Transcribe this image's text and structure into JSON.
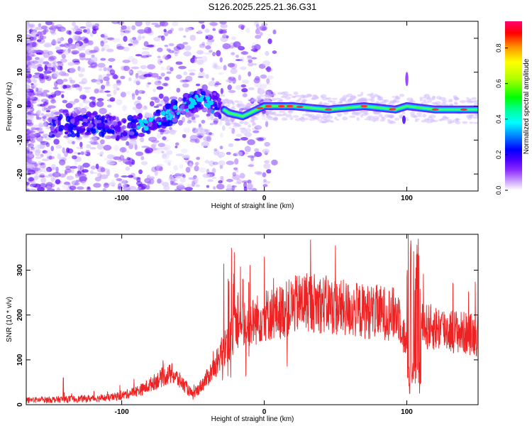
{
  "title": "S126.2025.225.21.36.G31",
  "chart_data": [
    {
      "type": "heatmap",
      "name": "spectrogram",
      "xlabel": "Height of straight line (km)",
      "ylabel": "Frequency (Hz)",
      "xlim": [
        -167,
        150
      ],
      "ylim": [
        -25,
        25
      ],
      "xticks": [
        -100,
        0,
        100
      ],
      "yticks": [
        -20,
        -10,
        0,
        10,
        20
      ],
      "colorbar": {
        "label": "Normalized spectral amplitude",
        "range": [
          0.0,
          0.95
        ],
        "ticks": [
          0.0,
          0.2,
          0.4,
          0.6,
          0.8
        ],
        "colors": [
          "#ffffff",
          "#d8c8ff",
          "#9b5cff",
          "#5a00ff",
          "#0000ff",
          "#00a0ff",
          "#00ffff",
          "#00ff80",
          "#00ff00",
          "#c0ff00",
          "#ffff00",
          "#ffa000",
          "#ff0000",
          "#ff0080"
        ]
      },
      "ridge": [
        {
          "x": -145,
          "y": -6
        },
        {
          "x": -120,
          "y": -5
        },
        {
          "x": -100,
          "y": -7
        },
        {
          "x": -80,
          "y": -5
        },
        {
          "x": -60,
          "y": -1
        },
        {
          "x": -45,
          "y": 2
        },
        {
          "x": -35,
          "y": 1
        },
        {
          "x": -25,
          "y": -2
        },
        {
          "x": -15,
          "y": -3
        },
        {
          "x": -5,
          "y": -1
        },
        {
          "x": 0,
          "y": 0
        },
        {
          "x": 20,
          "y": 0
        },
        {
          "x": 45,
          "y": -1
        },
        {
          "x": 70,
          "y": 0
        },
        {
          "x": 92,
          "y": -1
        },
        {
          "x": 100,
          "y": 0
        },
        {
          "x": 120,
          "y": -1
        },
        {
          "x": 150,
          "y": -1
        }
      ]
    },
    {
      "type": "line",
      "name": "snr",
      "xlabel": "Height of straight line (km)",
      "ylabel": "SNR (10 * v/v)",
      "xlim": [
        -167,
        150
      ],
      "ylim": [
        0,
        380
      ],
      "xticks": [
        -100,
        0,
        100
      ],
      "yticks": [
        0,
        100,
        200,
        300
      ],
      "color": "#ee2222",
      "envelope": [
        {
          "x": -167,
          "y": 10
        },
        {
          "x": -140,
          "y": 12
        },
        {
          "x": -110,
          "y": 15
        },
        {
          "x": -100,
          "y": 20
        },
        {
          "x": -85,
          "y": 35
        },
        {
          "x": -75,
          "y": 55
        },
        {
          "x": -65,
          "y": 70
        },
        {
          "x": -55,
          "y": 40
        },
        {
          "x": -50,
          "y": 20
        },
        {
          "x": -40,
          "y": 60
        },
        {
          "x": -30,
          "y": 110
        },
        {
          "x": -20,
          "y": 170
        },
        {
          "x": -10,
          "y": 180
        },
        {
          "x": 0,
          "y": 200
        },
        {
          "x": 10,
          "y": 205
        },
        {
          "x": 20,
          "y": 220
        },
        {
          "x": 30,
          "y": 232
        },
        {
          "x": 40,
          "y": 225
        },
        {
          "x": 55,
          "y": 215
        },
        {
          "x": 70,
          "y": 208
        },
        {
          "x": 85,
          "y": 205
        },
        {
          "x": 95,
          "y": 200
        },
        {
          "x": 100,
          "y": 120
        },
        {
          "x": 105,
          "y": 200
        },
        {
          "x": 110,
          "y": 175
        },
        {
          "x": 125,
          "y": 170
        },
        {
          "x": 140,
          "y": 160
        },
        {
          "x": 150,
          "y": 155
        }
      ],
      "peaks": [
        {
          "x": -23,
          "y": 350
        },
        {
          "x": -21,
          "y": 340
        },
        {
          "x": -15,
          "y": 280
        },
        {
          "x": 0,
          "y": 330
        },
        {
          "x": 16,
          "y": 85
        },
        {
          "x": 101,
          "y": 380
        },
        {
          "x": 102,
          "y": 25
        },
        {
          "x": 108,
          "y": 370
        },
        {
          "x": 109,
          "y": 25
        },
        {
          "x": -141,
          "y": 60
        }
      ]
    }
  ]
}
